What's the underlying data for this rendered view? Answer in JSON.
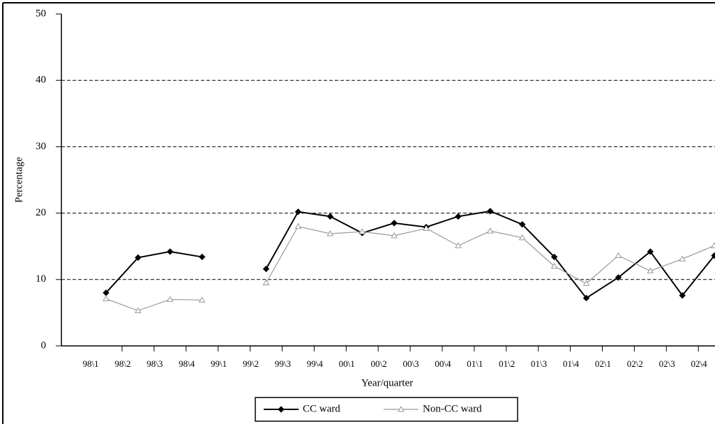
{
  "chart_data": {
    "type": "line",
    "x_label": "Year/quarter",
    "y_label": "Percentage",
    "categories": [
      "98\\1",
      "98\\2",
      "98\\3",
      "98\\4",
      "99\\1",
      "99\\2",
      "99\\3",
      "99\\4",
      "00\\1",
      "00\\2",
      "00\\3",
      "00\\4",
      "01\\1",
      "01\\2",
      "01\\3",
      "01\\4",
      "02\\1",
      "02\\2",
      "02\\3",
      "02\\4"
    ],
    "series": [
      {
        "name": "CC ward",
        "color": "#000000",
        "marker": "diamond",
        "values": [
          8.0,
          13.3,
          14.2,
          13.4,
          null,
          11.6,
          20.2,
          19.5,
          17.0,
          18.5,
          17.9,
          19.5,
          20.3,
          18.3,
          13.4,
          7.2,
          10.3,
          14.2,
          7.6,
          13.6
        ]
      },
      {
        "name": "Non-CC ward",
        "color": "#999999",
        "marker": "triangle",
        "values": [
          7.1,
          5.3,
          7.0,
          6.9,
          null,
          9.5,
          18.0,
          16.9,
          17.2,
          16.6,
          17.7,
          15.1,
          17.3,
          16.3,
          12.0,
          9.4,
          13.6,
          11.3,
          13.1,
          15.1
        ]
      }
    ],
    "ylim": [
      0,
      50
    ],
    "yticks": [
      0,
      10,
      20,
      30,
      40,
      50
    ],
    "grid": true,
    "legend": "bottom"
  }
}
